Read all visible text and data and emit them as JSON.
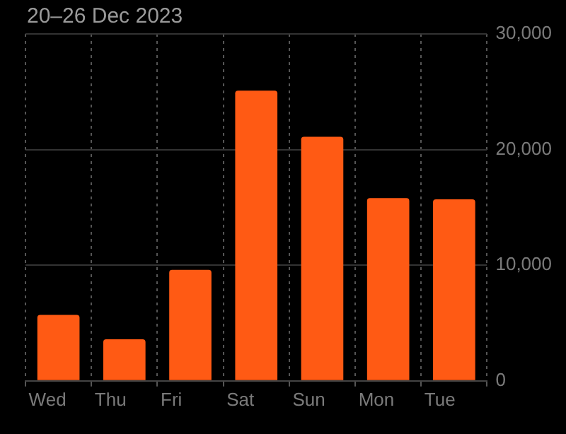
{
  "chart_data": {
    "type": "bar",
    "title": "20–26 Dec 2023",
    "categories": [
      "Wed",
      "Thu",
      "Fri",
      "Sat",
      "Sun",
      "Mon",
      "Tue"
    ],
    "values": [
      5700,
      3600,
      9600,
      25100,
      21100,
      15800,
      15700
    ],
    "color": "#ff5a14",
    "ylim": [
      0,
      30000
    ],
    "yticks": [
      0,
      {
        "value": 10000,
        "label": "10,000"
      },
      {
        "value": 20000,
        "label": "20,000"
      },
      {
        "value": 30000,
        "label": "30,000"
      }
    ],
    "grid": true
  }
}
